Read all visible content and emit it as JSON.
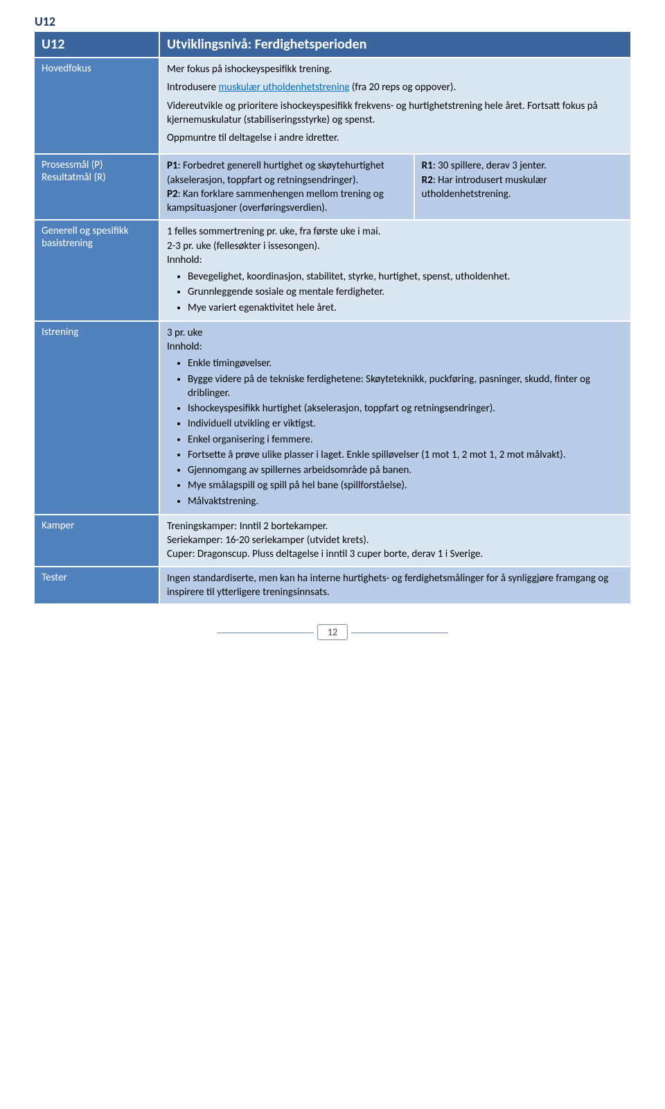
{
  "doc_header": "U12",
  "header": {
    "left": "U12",
    "right": "Utviklingsnivå: Ferdighetsperioden"
  },
  "rows": {
    "hovedfokus": {
      "label": "Hovedfokus",
      "p1_a": "Mer fokus på ishockeyspesifikk trening.",
      "p2_a": "Introdusere ",
      "p2_link": "muskulær utholdenhetstrening",
      "p2_b": " (fra 20 reps og oppover).",
      "p3": "Videreutvikle og prioritere ishockeyspesifikk frekvens- og hurtighetstrening hele året. Fortsatt fokus på kjernemuskulatur (stabiliseringsstyrke) og spenst.",
      "p4": "Oppmuntre til deltagelse i andre idretter."
    },
    "prosess": {
      "label_a": "Prosessmål (P)",
      "label_b": "Resultatmål (R)",
      "p1_b": "P1",
      "p1_t": ": Forbedret generell hurtighet og skøytehurtighet (akselerasjon, toppfart og retningsendringer).",
      "p2_b": "P2",
      "p2_t": ": Kan forklare sammenhengen mellom trening og kampsituasjoner (overføringsverdien).",
      "r1_b": "R1",
      "r1_t": ": 30 spillere, derav 3 jenter.",
      "r2_b": "R2",
      "r2_t": ": Har introdusert muskulær utholdenhetstrening."
    },
    "basistrening": {
      "label_a": "Generell og spesifikk",
      "label_b": "basistrening",
      "line1": "1 felles sommertrening pr. uke, fra første uke i mai.",
      "line2": "2-3 pr. uke (fellesøkter i issesongen).",
      "line3": "Innhold:",
      "bullets": [
        "Bevegelighet, koordinasjon, stabilitet, styrke, hurtighet, spenst, utholdenhet.",
        "Grunnleggende sosiale og mentale ferdigheter.",
        "Mye variert egenaktivitet hele året."
      ]
    },
    "istrening": {
      "label": "Istrening",
      "line1": "3 pr. uke",
      "line2": "Innhold:",
      "bullets": [
        "Enkle timingøvelser.",
        "Bygge videre på de tekniske ferdighetene: Skøyteteknikk, puckføring, pasninger, skudd, finter og driblinger.",
        "Ishockeyspesifikk hurtighet (akselerasjon, toppfart og retningsendringer).",
        "Individuell utvikling er viktigst.",
        "Enkel organisering i femmere.",
        "Fortsette å prøve ulike plasser i laget. Enkle spilløvelser (1 mot 1, 2 mot 1, 2 mot målvakt).",
        "Gjennomgang av spillernes arbeidsområde på banen.",
        "Mye smålagspill og spill på hel bane (spillforståelse).",
        "Målvaktstrening."
      ]
    },
    "kamper": {
      "label": "Kamper",
      "line1": "Treningskamper: Inntil 2 bortekamper.",
      "line2": "Seriekamper: 16-20 seriekamper (utvidet krets).",
      "line3": "Cuper: Dragonscup. Pluss deltagelse i inntil 3 cuper borte, derav 1 i Sverige."
    },
    "tester": {
      "label": "Tester",
      "text": "Ingen standardiserte, men kan ha interne hurtighets- og ferdighetsmålinger for å synliggjøre framgang og inspirere til ytterligere treningsinnsats."
    }
  },
  "page_number": "12",
  "colors": {
    "header_bg": "#3b669d",
    "label_bg": "#5081bd",
    "content_bg": "#dae6f2",
    "content_alt_bg": "#b9cde9",
    "doc_header_color": "#1f3864",
    "link_color": "#0070c0"
  }
}
